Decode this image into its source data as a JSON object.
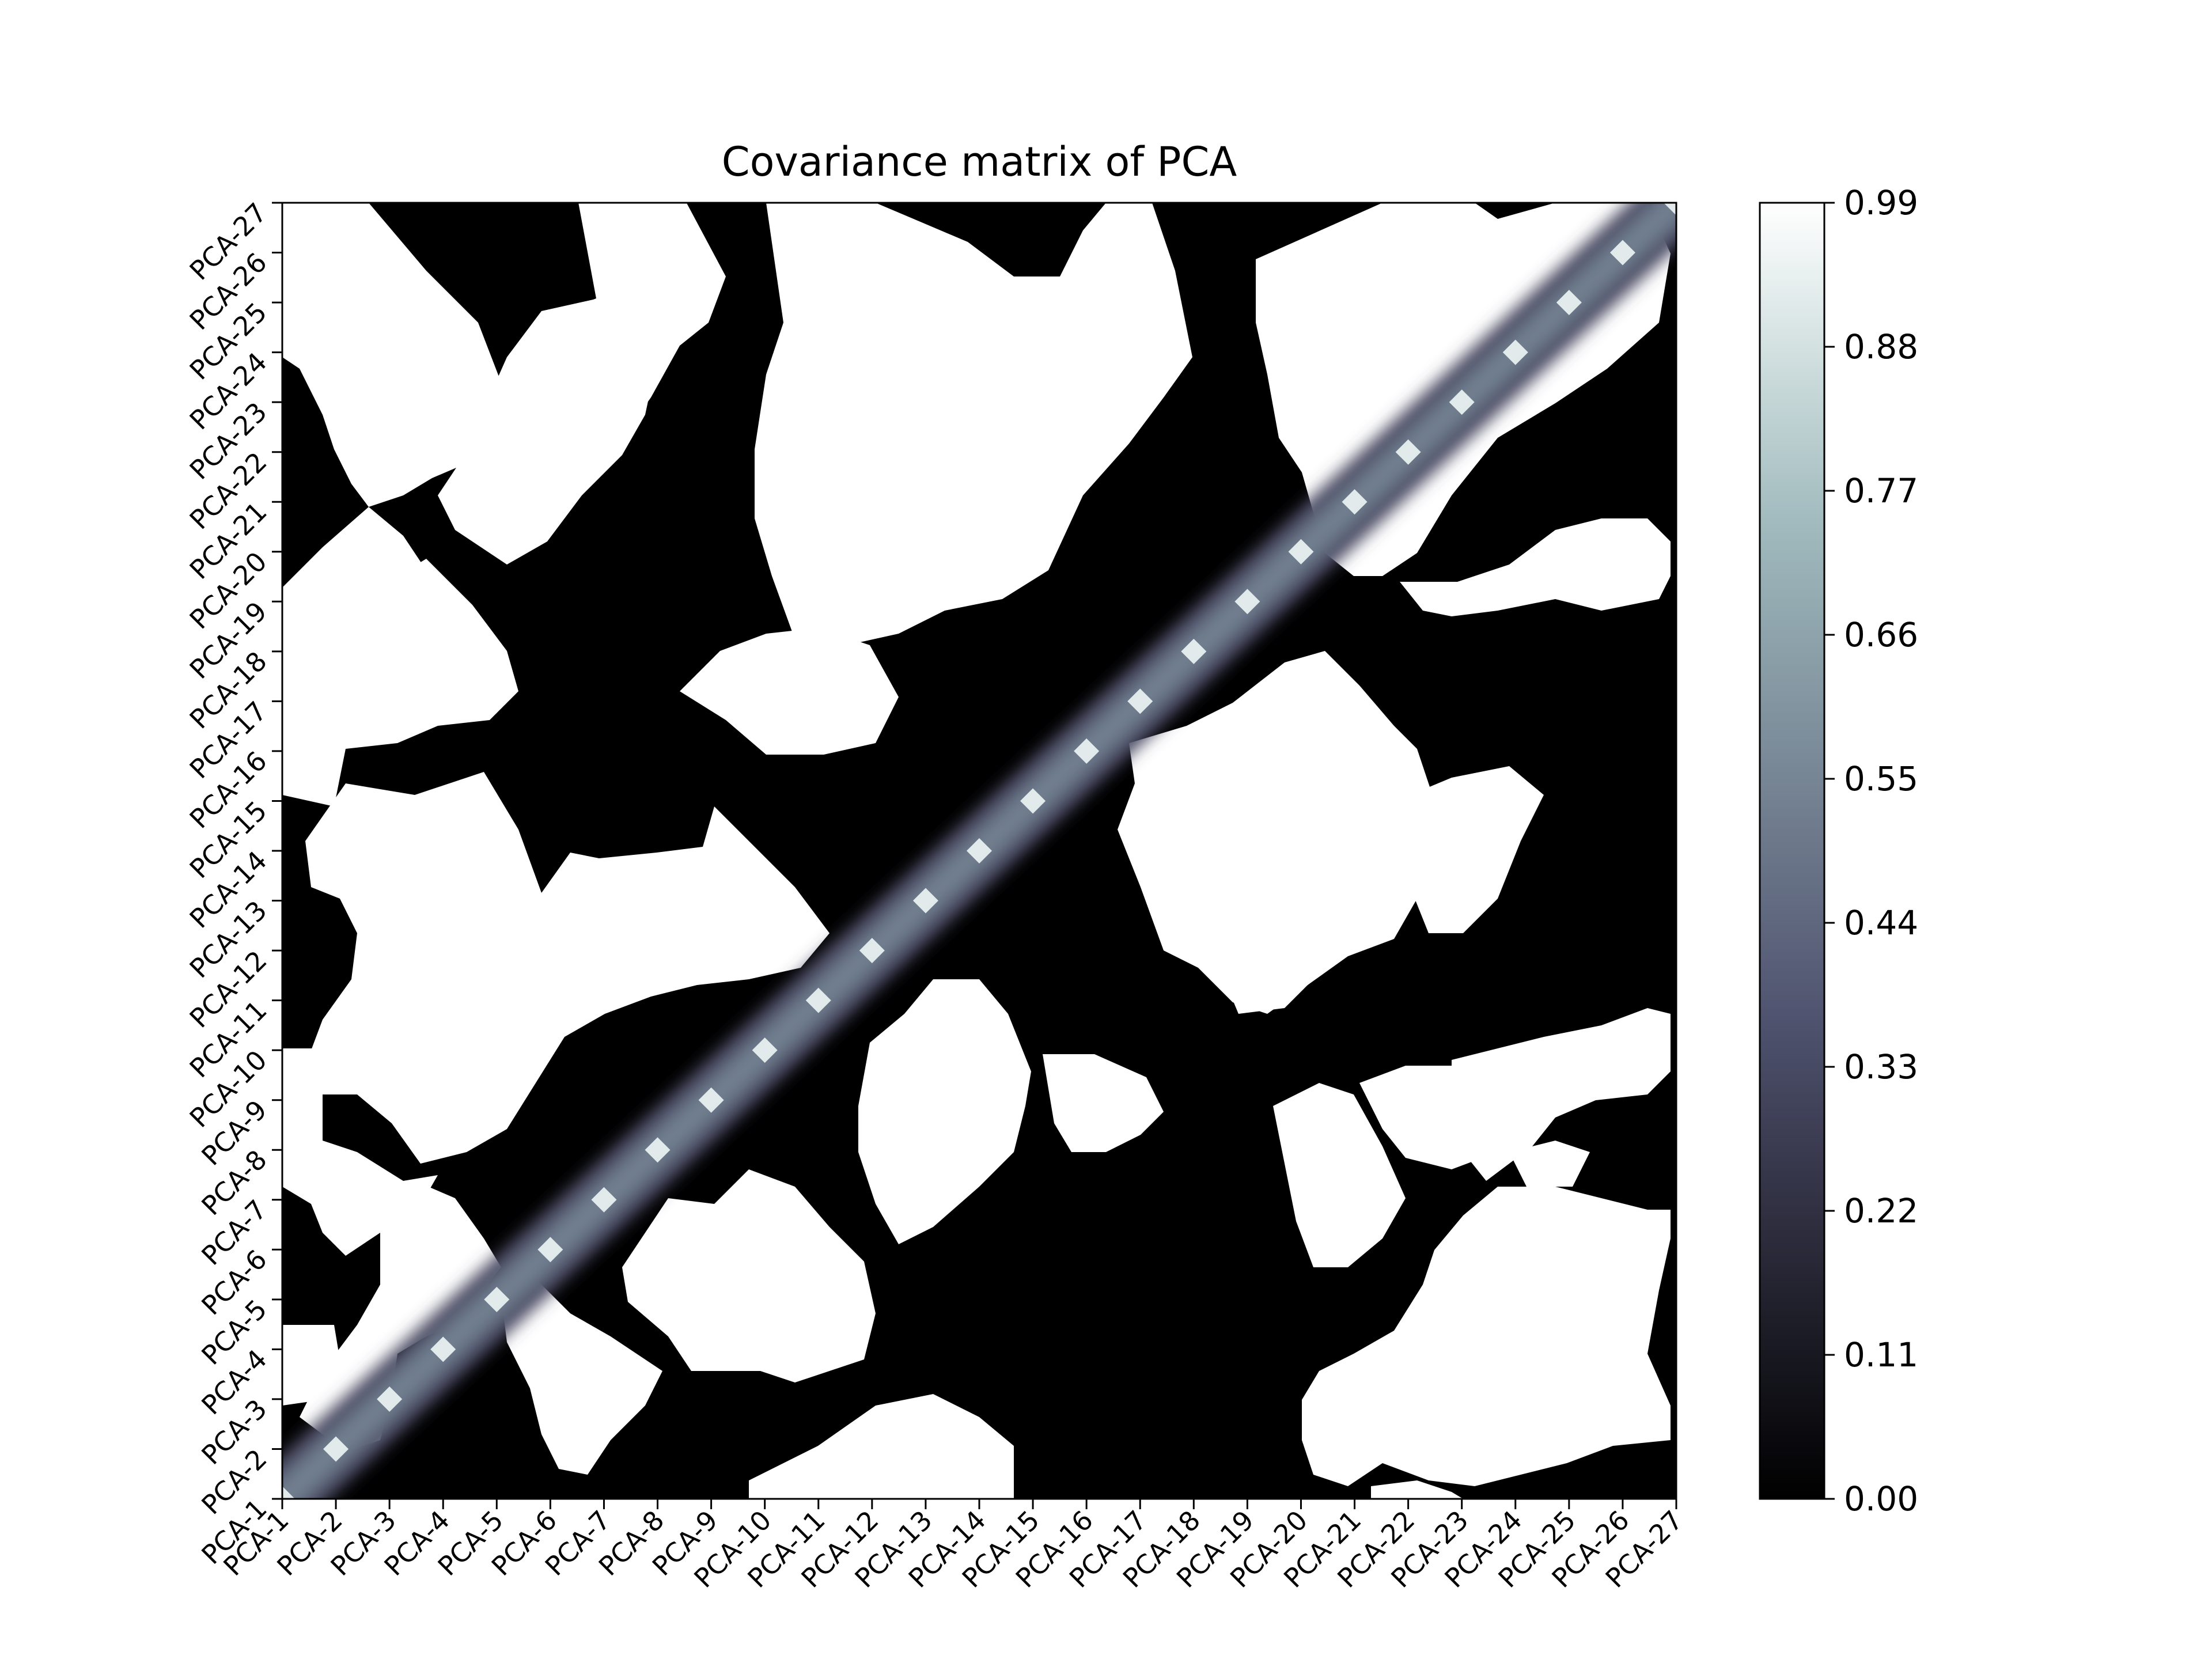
{
  "chart_data": {
    "type": "heatmap",
    "plot_style": "filled-contour",
    "title": "Covariance matrix of PCA",
    "xlabel": "",
    "ylabel": "",
    "x_categories": [
      "PCA-1",
      "PCA-2",
      "PCA-3",
      "PCA-4",
      "PCA-5",
      "PCA-6",
      "PCA-7",
      "PCA-8",
      "PCA-9",
      "PCA-10",
      "PCA-11",
      "PCA-12",
      "PCA-13",
      "PCA-14",
      "PCA-15",
      "PCA-16",
      "PCA-17",
      "PCA-18",
      "PCA-19",
      "PCA-20",
      "PCA-21",
      "PCA-22",
      "PCA-23",
      "PCA-24",
      "PCA-25",
      "PCA-26",
      "PCA-27"
    ],
    "y_categories": [
      "PCA-1",
      "PCA-2",
      "PCA-3",
      "PCA-4",
      "PCA-5",
      "PCA-6",
      "PCA-7",
      "PCA-8",
      "PCA-9",
      "PCA-10",
      "PCA-11",
      "PCA-12",
      "PCA-13",
      "PCA-14",
      "PCA-15",
      "PCA-16",
      "PCA-17",
      "PCA-18",
      "PCA-19",
      "PCA-20",
      "PCA-21",
      "PCA-22",
      "PCA-23",
      "PCA-24",
      "PCA-25",
      "PCA-26",
      "PCA-27"
    ],
    "x_origin": "bottom-left",
    "diagonal_value": 0.99,
    "off_diagonal_pattern": "binary black/white regions (approximately 0.00 or 0.99) in an irregular, roughly symmetric pattern",
    "colormap": "bone",
    "colorbar": {
      "min": 0.0,
      "max": 0.99,
      "ticks": [
        "0.00",
        "0.11",
        "0.22",
        "0.33",
        "0.44",
        "0.55",
        "0.66",
        "0.77",
        "0.88",
        "0.99"
      ],
      "position": "right"
    },
    "colors": {
      "low": "#000000",
      "mid": "#6f7e8e",
      "high": "#ffffff"
    }
  }
}
